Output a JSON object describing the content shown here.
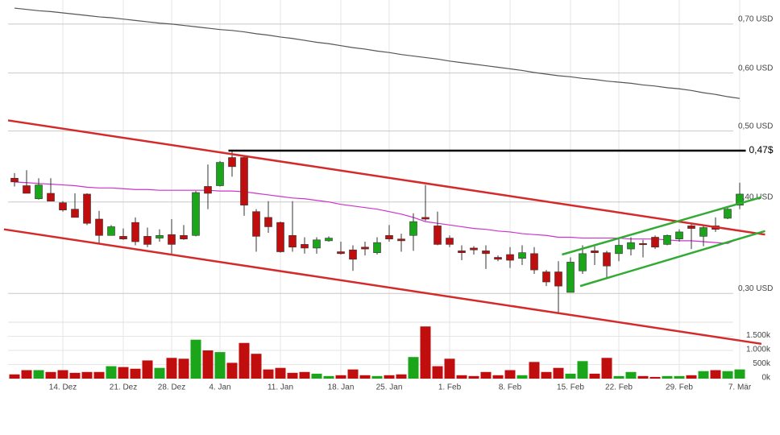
{
  "chart_data": {
    "type": "candlestick",
    "log_scale": true,
    "grid": true,
    "up_color": "#1aa51a",
    "down_color": "#c00d0d",
    "ylim": [
      0.274,
      0.755
    ],
    "yticks": [
      {
        "value": 0.3,
        "label": "0,30 USD"
      },
      {
        "value": 0.4,
        "label": "0,40 USD"
      },
      {
        "value": 0.5,
        "label": "0,50 USD"
      },
      {
        "value": 0.6,
        "label": "0,60 USD"
      },
      {
        "value": 0.7,
        "label": "0,70 USD"
      }
    ],
    "categories": [
      null,
      null,
      null,
      null,
      "14. Dez",
      null,
      null,
      null,
      null,
      "21. Dez",
      null,
      null,
      null,
      "28. Dez",
      null,
      null,
      null,
      "4. Jan",
      null,
      null,
      null,
      null,
      "11. Jan",
      null,
      null,
      null,
      null,
      "18. Jan",
      null,
      null,
      null,
      "25. Jan",
      null,
      null,
      null,
      null,
      "1. Feb",
      null,
      null,
      null,
      null,
      "8. Feb",
      null,
      null,
      null,
      null,
      "15. Feb",
      null,
      null,
      null,
      "22. Feb",
      null,
      null,
      null,
      null,
      "29. Feb",
      null,
      null,
      null,
      null,
      "7. Mär"
    ],
    "open": [
      0.431,
      0.421,
      0.404,
      0.411,
      0.399,
      0.391,
      0.41,
      0.379,
      0.36,
      0.359,
      0.375,
      0.359,
      0.357,
      0.361,
      0.36,
      0.36,
      0.42,
      0.421,
      0.46,
      0.46,
      0.388,
      0.381,
      0.375,
      0.36,
      0.35,
      0.346,
      0.354,
      0.342,
      0.344,
      0.347,
      0.341,
      0.36,
      0.356,
      0.36,
      0.381,
      0.371,
      0.357,
      0.343,
      0.346,
      0.343,
      0.336,
      0.339,
      0.335,
      0.34,
      0.321,
      0.321,
      0.301,
      0.322,
      0.343,
      0.341,
      0.34,
      0.345,
      0.351,
      0.358,
      0.35,
      0.356,
      0.371,
      0.359,
      0.371,
      0.38,
      0.396
    ],
    "high": [
      0.438,
      0.442,
      0.431,
      0.431,
      0.401,
      0.411,
      0.411,
      0.389,
      0.372,
      0.368,
      0.381,
      0.369,
      0.367,
      0.379,
      0.372,
      0.414,
      0.45,
      0.455,
      0.469,
      0.461,
      0.391,
      0.401,
      0.376,
      0.401,
      0.358,
      0.358,
      0.359,
      0.353,
      0.349,
      0.353,
      0.358,
      0.372,
      0.362,
      0.386,
      0.422,
      0.388,
      0.36,
      0.349,
      0.348,
      0.349,
      0.338,
      0.347,
      0.349,
      0.347,
      0.323,
      0.332,
      0.336,
      0.349,
      0.348,
      0.343,
      0.358,
      0.358,
      0.355,
      0.36,
      0.361,
      0.367,
      0.374,
      0.372,
      0.381,
      0.393,
      0.425
    ],
    "low": [
      0.42,
      0.411,
      0.403,
      0.401,
      0.388,
      0.381,
      0.372,
      0.351,
      0.36,
      0.355,
      0.349,
      0.347,
      0.353,
      0.339,
      0.355,
      0.359,
      0.391,
      0.42,
      0.433,
      0.383,
      0.342,
      0.363,
      0.341,
      0.342,
      0.34,
      0.34,
      0.353,
      0.339,
      0.322,
      0.338,
      0.339,
      0.353,
      0.342,
      0.343,
      0.377,
      0.349,
      0.347,
      0.333,
      0.339,
      0.324,
      0.332,
      0.325,
      0.328,
      0.319,
      0.307,
      0.281,
      0.301,
      0.319,
      0.328,
      0.315,
      0.332,
      0.338,
      0.336,
      0.345,
      0.349,
      0.353,
      0.345,
      0.348,
      0.364,
      0.379,
      0.391
    ],
    "close": [
      0.426,
      0.411,
      0.422,
      0.401,
      0.39,
      0.381,
      0.374,
      0.36,
      0.37,
      0.356,
      0.353,
      0.35,
      0.36,
      0.35,
      0.356,
      0.412,
      0.411,
      0.453,
      0.447,
      0.396,
      0.359,
      0.37,
      0.342,
      0.347,
      0.346,
      0.355,
      0.357,
      0.34,
      0.334,
      0.345,
      0.352,
      0.356,
      0.354,
      0.376,
      0.379,
      0.35,
      0.35,
      0.341,
      0.344,
      0.34,
      0.334,
      0.333,
      0.341,
      0.323,
      0.311,
      0.307,
      0.331,
      0.34,
      0.341,
      0.327,
      0.349,
      0.352,
      0.35,
      0.347,
      0.36,
      0.364,
      0.368,
      0.369,
      0.367,
      0.391,
      0.41
    ],
    "moving_averages": [
      {
        "color": "#555555",
        "values": [
          0.736,
          0.733,
          0.73,
          0.728,
          0.725,
          0.722,
          0.719,
          0.716,
          0.714,
          0.711,
          0.708,
          0.705,
          0.702,
          0.7,
          0.697,
          0.694,
          0.691,
          0.688,
          0.686,
          0.683,
          0.679,
          0.676,
          0.672,
          0.669,
          0.665,
          0.661,
          0.658,
          0.654,
          0.65,
          0.647,
          0.643,
          0.64,
          0.636,
          0.633,
          0.63,
          0.627,
          0.623,
          0.62,
          0.617,
          0.614,
          0.611,
          0.608,
          0.605,
          0.601,
          0.598,
          0.595,
          0.593,
          0.59,
          0.588,
          0.585,
          0.583,
          0.581,
          0.578,
          0.576,
          0.573,
          0.571,
          0.568,
          0.564,
          0.561,
          0.557,
          0.554
        ]
      },
      {
        "color": "#cc33cc",
        "values": [
          0.426,
          0.425,
          0.424,
          0.423,
          0.422,
          0.421,
          0.419,
          0.418,
          0.418,
          0.417,
          0.416,
          0.416,
          0.415,
          0.415,
          0.415,
          0.415,
          0.415,
          0.414,
          0.414,
          0.413,
          0.411,
          0.409,
          0.407,
          0.405,
          0.404,
          0.402,
          0.4,
          0.397,
          0.395,
          0.393,
          0.391,
          0.388,
          0.385,
          0.381,
          0.376,
          0.374,
          0.372,
          0.37,
          0.368,
          0.367,
          0.365,
          0.364,
          0.362,
          0.361,
          0.36,
          0.358,
          0.358,
          0.357,
          0.357,
          0.357,
          0.357,
          0.356,
          0.356,
          0.356,
          0.355,
          0.354,
          0.354,
          0.353,
          0.352,
          0.351,
          0.357
        ]
      }
    ],
    "trendlines": [
      {
        "color": "#d42a2a",
        "from": [
          -0.53,
          0.517
        ],
        "to": [
          62.1,
          0.361
        ]
      },
      {
        "color": "#d42a2a",
        "from": [
          -0.87,
          0.367
        ],
        "to": [
          61.8,
          0.256
        ]
      },
      {
        "color": "#33aa33",
        "from": [
          46.8,
          0.307
        ],
        "to": [
          62.1,
          0.365
        ]
      },
      {
        "color": "#33aa33",
        "from": [
          45.3,
          0.339
        ],
        "to": [
          61.8,
          0.406
        ]
      }
    ],
    "levels": [
      {
        "value": 0.47,
        "label": "0,47$",
        "from": 17.7,
        "to": 60.5
      }
    ],
    "volume": {
      "values": [
        150,
        300,
        300,
        235,
        300,
        205,
        235,
        235,
        440,
        410,
        350,
        645,
        380,
        735,
        705,
        1380,
        1000,
        940,
        560,
        1265,
        880,
        325,
        380,
        205,
        235,
        175,
        90,
        120,
        325,
        120,
        90,
        120,
        150,
        765,
        1850,
        440,
        705,
        120,
        90,
        235,
        120,
        300,
        120,
        590,
        235,
        380,
        175,
        620,
        175,
        735,
        90,
        235,
        90,
        60,
        90,
        90,
        120,
        265,
        300,
        265,
        325
      ],
      "ylim": [
        0,
        2000
      ],
      "yticks": [
        {
          "value": 0,
          "label": "0k"
        },
        {
          "value": 500,
          "label": "500k"
        },
        {
          "value": 1000,
          "label": "1.000k"
        },
        {
          "value": 1500,
          "label": "1.500k"
        }
      ]
    }
  }
}
